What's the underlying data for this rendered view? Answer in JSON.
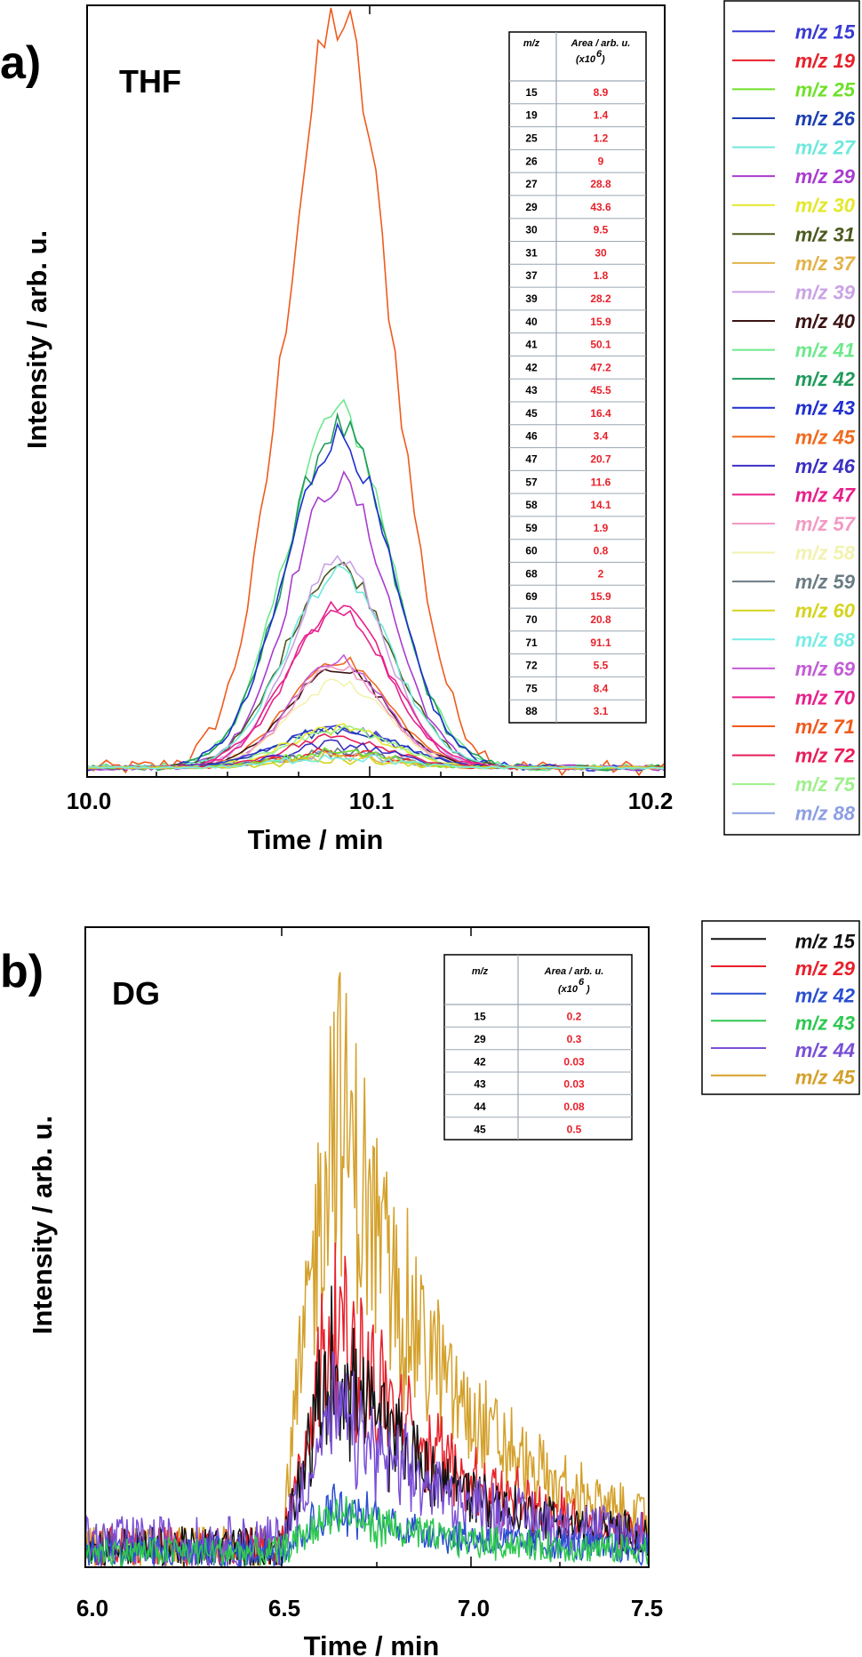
{
  "panels": [
    {
      "letter": "a)",
      "inset_title": "THF",
      "x_title": "Time / min",
      "y_title": "Intensity / arb. u.",
      "x_ticks": [
        "10.0",
        "10.1",
        "10.2"
      ],
      "table_headers": [
        "m/z",
        "Area / arb. u.",
        "(x10",
        "6",
        ")"
      ],
      "table_rows": [
        [
          "15",
          "8.9"
        ],
        [
          "19",
          "1.4"
        ],
        [
          "25",
          "1.2"
        ],
        [
          "26",
          "9"
        ],
        [
          "27",
          "28.8"
        ],
        [
          "29",
          "43.6"
        ],
        [
          "30",
          "9.5"
        ],
        [
          "31",
          "30"
        ],
        [
          "37",
          "1.8"
        ],
        [
          "39",
          "28.2"
        ],
        [
          "40",
          "15.9"
        ],
        [
          "41",
          "50.1"
        ],
        [
          "42",
          "47.2"
        ],
        [
          "43",
          "45.5"
        ],
        [
          "45",
          "16.4"
        ],
        [
          "46",
          "3.4"
        ],
        [
          "47",
          "20.7"
        ],
        [
          "57",
          "11.6"
        ],
        [
          "58",
          "14.1"
        ],
        [
          "59",
          "1.9"
        ],
        [
          "60",
          "0.8"
        ],
        [
          "68",
          "2"
        ],
        [
          "69",
          "15.9"
        ],
        [
          "70",
          "20.8"
        ],
        [
          "71",
          "91.1"
        ],
        [
          "72",
          "5.5"
        ],
        [
          "75",
          "8.4"
        ],
        [
          "88",
          "3.1"
        ]
      ],
      "legend": [
        {
          "label": "m/z 15",
          "color": "#3a3ad6"
        },
        {
          "label": "m/z 19",
          "color": "#e8202a"
        },
        {
          "label": "m/z 25",
          "color": "#6fe02a"
        },
        {
          "label": "m/z 26",
          "color": "#1d3fb0"
        },
        {
          "label": "m/z 27",
          "color": "#6fe8dc"
        },
        {
          "label": "m/z 29",
          "color": "#a83ccf"
        },
        {
          "label": "m/z 30",
          "color": "#e4e82a"
        },
        {
          "label": "m/z 31",
          "color": "#4b5a1f"
        },
        {
          "label": "m/z 37",
          "color": "#e4b24a"
        },
        {
          "label": "m/z 39",
          "color": "#c9a3e6"
        },
        {
          "label": "m/z 40",
          "color": "#3c1414"
        },
        {
          "label": "m/z 41",
          "color": "#6ee88c"
        },
        {
          "label": "m/z 42",
          "color": "#1e9a5a"
        },
        {
          "label": "m/z 43",
          "color": "#1f2fd0"
        },
        {
          "label": "m/z 45",
          "color": "#f06a1e"
        },
        {
          "label": "m/z 46",
          "color": "#3b2fc4"
        },
        {
          "label": "m/z 47",
          "color": "#e8208c"
        },
        {
          "label": "m/z 57",
          "color": "#f29ac4"
        },
        {
          "label": "m/z 58",
          "color": "#f2f2b0"
        },
        {
          "label": "m/z 59",
          "color": "#6b7c84"
        },
        {
          "label": "m/z 60",
          "color": "#d4d41e"
        },
        {
          "label": "m/z 68",
          "color": "#78ece6"
        },
        {
          "label": "m/z 69",
          "color": "#c45cd6"
        },
        {
          "label": "m/z 70",
          "color": "#e8208a"
        },
        {
          "label": "m/z 71",
          "color": "#f05a1e"
        },
        {
          "label": "m/z 72",
          "color": "#e81e5a"
        },
        {
          "label": "m/z 75",
          "color": "#9ef08c"
        },
        {
          "label": "m/z 88",
          "color": "#8c9ee4"
        }
      ]
    },
    {
      "letter": "b)",
      "inset_title": "DG",
      "x_title": "Time / min",
      "y_title": "Intensity / arb. u.",
      "x_ticks": [
        "6.0",
        "6.5",
        "7.0",
        "7.5"
      ],
      "table_headers": [
        "m/z",
        "Area / arb. u.",
        "(x10",
        "6",
        ")"
      ],
      "table_rows": [
        [
          "15",
          "0.2"
        ],
        [
          "29",
          "0.3"
        ],
        [
          "42",
          "0.03"
        ],
        [
          "43",
          "0.03"
        ],
        [
          "44",
          "0.08"
        ],
        [
          "45",
          "0.5"
        ]
      ],
      "legend": [
        {
          "label": "m/z 15",
          "color": "#111111"
        },
        {
          "label": "m/z 29",
          "color": "#e8202a"
        },
        {
          "label": "m/z 42",
          "color": "#2a4fd0"
        },
        {
          "label": "m/z 43",
          "color": "#2ec850"
        },
        {
          "label": "m/z 44",
          "color": "#7a4fd6"
        },
        {
          "label": "m/z 45",
          "color": "#d4a02a"
        }
      ]
    }
  ],
  "chart_data": [
    {
      "type": "line",
      "title": "THF",
      "xlabel": "Time / min",
      "ylabel": "Intensity / arb. u.",
      "xlim": [
        10.0,
        10.2
      ],
      "ylim": [
        0,
        1
      ],
      "y_tick_labels": false,
      "peak_center": 10.087,
      "series": [
        {
          "name": "m/z 71",
          "color": "#f05a1e",
          "peak": 0.97,
          "width": 0.018
        },
        {
          "name": "m/z 41",
          "color": "#6ee88c",
          "peak": 0.46,
          "width": 0.018
        },
        {
          "name": "m/z 42",
          "color": "#1e9a5a",
          "peak": 0.44,
          "width": 0.018
        },
        {
          "name": "m/z 43",
          "color": "#1f2fd0",
          "peak": 0.43,
          "width": 0.018
        },
        {
          "name": "m/z 29",
          "color": "#a83ccf",
          "peak": 0.37,
          "width": 0.017
        },
        {
          "name": "m/z 31",
          "color": "#4b5a1f",
          "peak": 0.26,
          "width": 0.018
        },
        {
          "name": "m/z 27",
          "color": "#6fe8dc",
          "peak": 0.25,
          "width": 0.018
        },
        {
          "name": "m/z 39",
          "color": "#c9a3e6",
          "peak": 0.27,
          "width": 0.016
        },
        {
          "name": "m/z 70",
          "color": "#e8208a",
          "peak": 0.21,
          "width": 0.017
        },
        {
          "name": "m/z 47",
          "color": "#e8208c",
          "peak": 0.2,
          "width": 0.018
        },
        {
          "name": "m/z 45",
          "color": "#f06a1e",
          "peak": 0.14,
          "width": 0.017
        },
        {
          "name": "m/z 40",
          "color": "#3c1414",
          "peak": 0.13,
          "width": 0.017
        },
        {
          "name": "m/z 69",
          "color": "#c45cd6",
          "peak": 0.14,
          "width": 0.016
        },
        {
          "name": "m/z 58",
          "color": "#f2f2b0",
          "peak": 0.11,
          "width": 0.017
        },
        {
          "name": "m/z 57",
          "color": "#f29ac4",
          "peak": 0.13,
          "width": 0.016
        },
        {
          "name": "m/z 15",
          "color": "#3a3ad6",
          "peak": 0.05,
          "width": 0.02
        },
        {
          "name": "m/z 26",
          "color": "#1d3fb0",
          "peak": 0.05,
          "width": 0.02
        },
        {
          "name": "m/z 30",
          "color": "#e4e82a",
          "peak": 0.05,
          "width": 0.018
        },
        {
          "name": "m/z 75",
          "color": "#9ef08c",
          "peak": 0.05,
          "width": 0.018
        },
        {
          "name": "m/z 72",
          "color": "#e81e5a",
          "peak": 0.04,
          "width": 0.018
        },
        {
          "name": "m/z 46",
          "color": "#3b2fc4",
          "peak": 0.03,
          "width": 0.018
        },
        {
          "name": "m/z 88",
          "color": "#8c9ee4",
          "peak": 0.02,
          "width": 0.018
        },
        {
          "name": "m/z 59",
          "color": "#6b7c84",
          "peak": 0.02,
          "width": 0.018
        },
        {
          "name": "m/z 19",
          "color": "#e8202a",
          "peak": 0.02,
          "width": 0.018
        },
        {
          "name": "m/z 25",
          "color": "#6fe02a",
          "peak": 0.02,
          "width": 0.018
        },
        {
          "name": "m/z 37",
          "color": "#e4b24a",
          "peak": 0.015,
          "width": 0.018
        },
        {
          "name": "m/z 60",
          "color": "#d4d41e",
          "peak": 0.01,
          "width": 0.018
        },
        {
          "name": "m/z 68",
          "color": "#78ece6",
          "peak": 0.015,
          "width": 0.018
        }
      ]
    },
    {
      "type": "line",
      "title": "DG",
      "xlabel": "Time / min",
      "ylabel": "Intensity / arb. u.",
      "xlim": [
        6.0,
        7.5
      ],
      "ylim": [
        0,
        1
      ],
      "y_tick_labels": false,
      "series": [
        {
          "name": "m/z 45",
          "color": "#d4a02a",
          "peak": 0.98,
          "baseline": 0.04
        },
        {
          "name": "m/z 29",
          "color": "#e8202a",
          "peak": 0.5,
          "baseline": 0.04
        },
        {
          "name": "m/z 15",
          "color": "#111111",
          "peak": 0.4,
          "baseline": 0.04
        },
        {
          "name": "m/z 44",
          "color": "#7a4fd6",
          "peak": 0.28,
          "baseline": 0.05
        },
        {
          "name": "m/z 42",
          "color": "#2a4fd0",
          "peak": 0.1,
          "baseline": 0.03
        },
        {
          "name": "m/z 43",
          "color": "#2ec850",
          "peak": 0.08,
          "baseline": 0.03
        }
      ]
    }
  ]
}
